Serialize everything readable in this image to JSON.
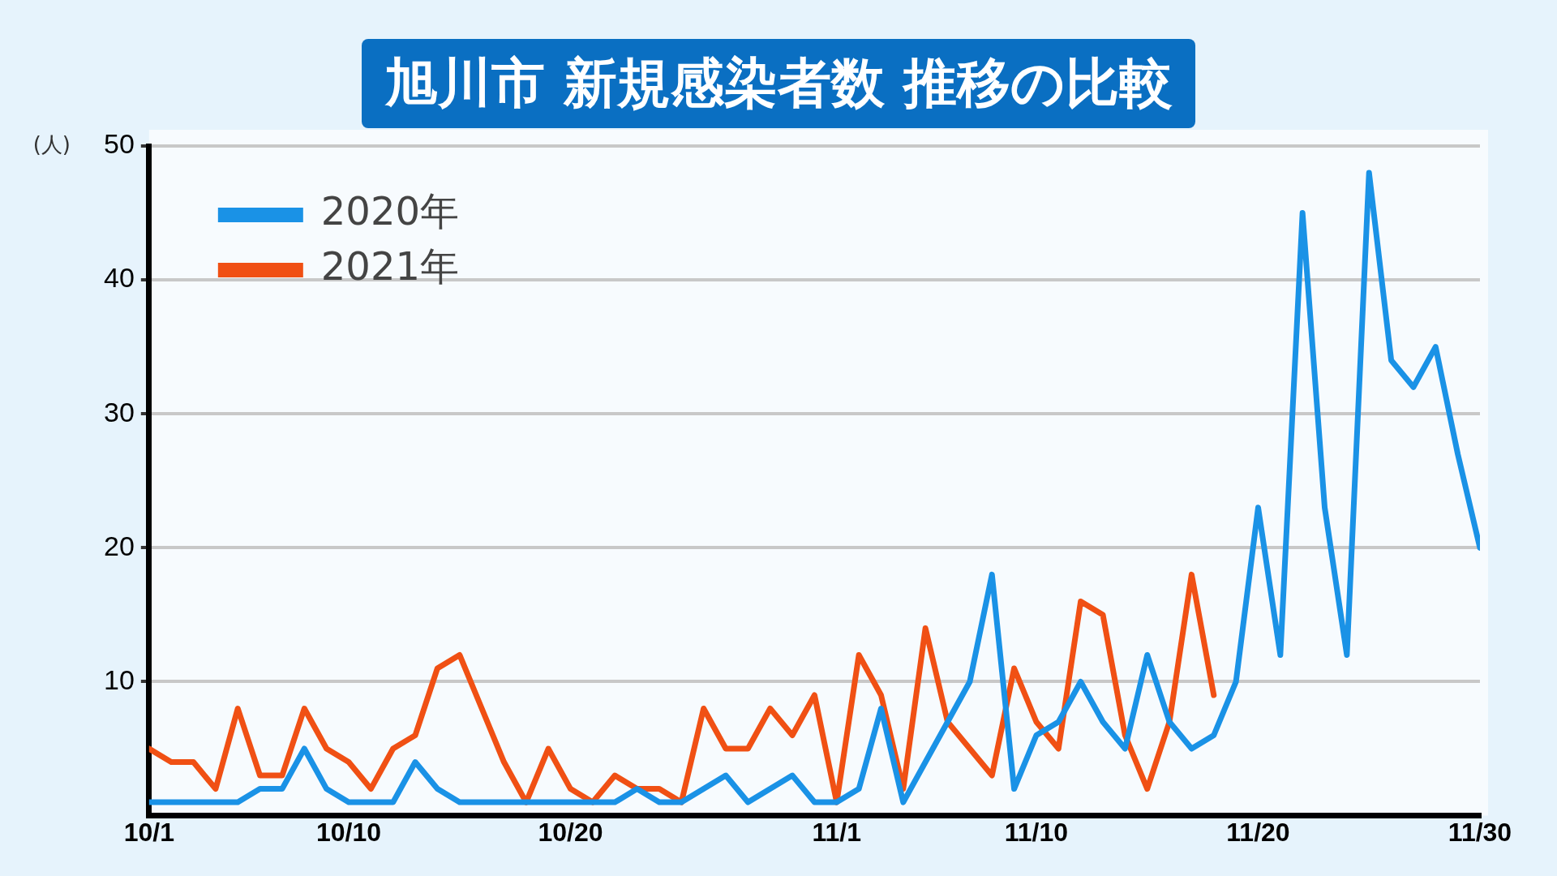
{
  "chart_data": {
    "type": "line",
    "title": "旭川市 新規感染者数 推移の比較",
    "ylabel": "(人)",
    "x": [
      "--10-01",
      "--10-02",
      "--10-03",
      "--10-04",
      "--10-05",
      "--10-06",
      "--10-07",
      "--10-08",
      "--10-09",
      "--10-10",
      "--10-11",
      "--10-12",
      "--10-13",
      "--10-14",
      "--10-15",
      "--10-16",
      "--10-17",
      "--10-18",
      "--10-19",
      "--10-20",
      "--10-21",
      "--10-22",
      "--10-23",
      "--10-24",
      "--10-25",
      "--10-26",
      "--10-27",
      "--10-28",
      "--10-29",
      "--10-30",
      "--10-31",
      "--11-01",
      "--11-02",
      "--11-03",
      "--11-04",
      "--11-05",
      "--11-06",
      "--11-07",
      "--11-08",
      "--11-09",
      "--11-10",
      "--11-11",
      "--11-12",
      "--11-13",
      "--11-14",
      "--11-15",
      "--11-16",
      "--11-17",
      "--11-18",
      "--11-19",
      "--11-20",
      "--11-21",
      "--11-22",
      "--11-23",
      "--11-24",
      "--11-25",
      "--11-26",
      "--11-27",
      "--11-28",
      "--11-29",
      "--11-30"
    ],
    "series": [
      {
        "name": "2020年",
        "color": "#1a92e6",
        "values": [
          1,
          1,
          1,
          1,
          1,
          2,
          2,
          5,
          2,
          1,
          1,
          1,
          4,
          2,
          1,
          1,
          1,
          1,
          1,
          1,
          1,
          1,
          2,
          1,
          1,
          2,
          3,
          1,
          2,
          3,
          1,
          1,
          2,
          8,
          1,
          4,
          7,
          10,
          18,
          2,
          6,
          7,
          10,
          7,
          5,
          12,
          7,
          5,
          6,
          10,
          23,
          12,
          45,
          23,
          12,
          48,
          34,
          32,
          35,
          27,
          20
        ]
      },
      {
        "name": "2021年",
        "color": "#f05014",
        "values": [
          5,
          4,
          4,
          2,
          8,
          3,
          3,
          8,
          5,
          4,
          2,
          5,
          6,
          11,
          12,
          8,
          4,
          1,
          5,
          2,
          1,
          3,
          2,
          2,
          1,
          8,
          5,
          5,
          8,
          6,
          9,
          1,
          12,
          9,
          2,
          14,
          7,
          5,
          3,
          11,
          7,
          5,
          16,
          15,
          6,
          2,
          7,
          18,
          9,
          null,
          null,
          null,
          null,
          null,
          null,
          null,
          null,
          null,
          null,
          null,
          null
        ]
      }
    ],
    "xlim": [
      "--10-01",
      "--11-30"
    ],
    "xticks": [
      {
        "value": "--10-01",
        "label": "10/1"
      },
      {
        "value": "--10-10",
        "label": "10/10"
      },
      {
        "value": "--10-20",
        "label": "10/20"
      },
      {
        "value": "--11-01",
        "label": "11/1"
      },
      {
        "value": "--11-10",
        "label": "11/10"
      },
      {
        "value": "--11-20",
        "label": "11/20"
      },
      {
        "value": "--11-30",
        "label": "11/30"
      }
    ],
    "ylim": [
      0,
      50
    ],
    "yticks": [
      10,
      20,
      30,
      40,
      50
    ],
    "grid": "y",
    "legend": "top left",
    "marker": "none",
    "line_style": "solid"
  }
}
